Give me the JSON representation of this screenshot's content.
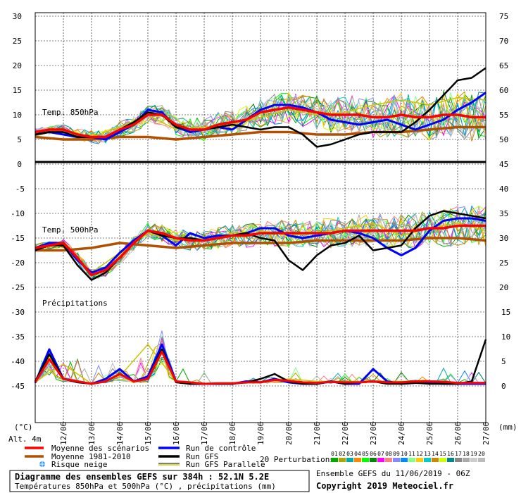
{
  "chart_data": {
    "type": "line",
    "panels": [
      {
        "label": "Temp. 850hPa",
        "unit": "°C",
        "left_ticks": [
          30,
          25,
          20,
          15,
          10,
          5,
          0
        ],
        "right_ticks": [
          75,
          70,
          65,
          60,
          55,
          50,
          45
        ]
      },
      {
        "label": "Temp. 500hPa",
        "unit": "°C",
        "left_ticks": [
          -5,
          -10,
          -15,
          -20,
          -25
        ],
        "right_ticks": [
          40,
          35,
          30,
          25,
          20
        ]
      },
      {
        "label": "Précipitations",
        "unit": "mm",
        "left_ticks": [
          -30,
          -35,
          -40,
          -45
        ],
        "right_ticks": [
          15,
          10,
          5,
          0
        ]
      }
    ],
    "left_unit": "(°C)",
    "right_unit": "(mm)",
    "altitude": "Alt. 4m",
    "dates": [
      "12/06",
      "13/06",
      "14/06",
      "15/06",
      "16/06",
      "17/06",
      "18/06",
      "19/06",
      "20/06",
      "21/06",
      "22/06",
      "23/06",
      "24/06",
      "25/06",
      "26/06",
      "27/06"
    ],
    "series": [
      {
        "name": "Moyenne des scénarios",
        "color": "#ff0000",
        "t850_x": [
          11.0,
          11.5,
          12.0,
          12.5,
          13.0,
          13.5,
          14.0,
          14.5,
          15.0,
          15.5,
          16.0,
          16.5,
          17.0,
          17.5,
          18.0,
          18.5,
          19.0,
          19.5,
          20.0,
          20.5,
          21.0,
          21.5,
          22.0,
          22.5,
          23.0,
          23.5,
          24.0,
          24.5,
          25.0,
          25.5,
          26.0,
          26.5,
          27.0
        ],
        "t850": [
          6.5,
          7.0,
          7.0,
          6.0,
          5.5,
          5.5,
          7.0,
          8.0,
          10.0,
          10.0,
          8.0,
          7.0,
          7.0,
          8.0,
          8.5,
          9.0,
          10.5,
          11.0,
          11.5,
          11.0,
          10.5,
          10.0,
          10.0,
          10.0,
          9.5,
          9.5,
          10.0,
          9.5,
          9.5,
          10.0,
          10.0,
          9.5,
          9.5
        ],
        "t500_x": [
          11.0,
          11.5,
          12.0,
          12.5,
          13.0,
          13.5,
          14.0,
          14.5,
          15.0,
          15.5,
          16.0,
          16.5,
          17.0,
          17.5,
          18.0,
          18.5,
          19.0,
          19.5,
          20.0,
          20.5,
          21.0,
          21.5,
          22.0,
          22.5,
          23.0,
          23.5,
          24.0,
          24.5,
          25.0,
          25.5,
          26.0,
          26.5,
          27.0
        ],
        "t500": [
          -17.0,
          -16.5,
          -16.0,
          -19.0,
          -22.5,
          -21.5,
          -19.0,
          -16.0,
          -13.5,
          -14.0,
          -15.0,
          -15.5,
          -15.5,
          -15.0,
          -14.5,
          -14.5,
          -14.0,
          -14.0,
          -14.0,
          -14.0,
          -14.0,
          -14.0,
          -13.5,
          -13.5,
          -13.5,
          -13.5,
          -13.5,
          -13.5,
          -13.0,
          -13.0,
          -12.5,
          -12.5,
          -12.5
        ],
        "precip_x": [
          11.0,
          11.5,
          12.0,
          12.5,
          13.0,
          13.5,
          14.0,
          14.5,
          15.0,
          15.5,
          16.0,
          16.5,
          17.0,
          17.5,
          18.0,
          18.5,
          19.0,
          19.5,
          20.0,
          20.5,
          21.0,
          21.5,
          22.0,
          22.5,
          23.0,
          23.5,
          24.0,
          24.5,
          25.0,
          25.5,
          26.0,
          26.5,
          27.0
        ],
        "precip": [
          0.3,
          5.0,
          1.0,
          0.5,
          0.0,
          0.5,
          2.0,
          0.5,
          1.0,
          6.5,
          0.5,
          0.3,
          0.0,
          0.1,
          0.1,
          0.3,
          0.3,
          0.8,
          0.6,
          0.3,
          0.2,
          0.4,
          0.3,
          0.3,
          0.5,
          0.3,
          0.3,
          0.5,
          0.5,
          0.4,
          0.2,
          0.2,
          0.2
        ]
      },
      {
        "name": "Moyenne 1981-2010",
        "color": "#b05000",
        "t850_x": [
          11.0,
          12.0,
          13.0,
          14.0,
          15.0,
          16.0,
          17.0,
          18.0,
          19.0,
          20.0,
          21.0,
          22.0,
          23.0,
          24.0,
          25.0,
          26.0,
          27.0
        ],
        "t850": [
          5.5,
          5.0,
          5.0,
          5.5,
          5.5,
          5.0,
          5.5,
          6.0,
          6.5,
          6.5,
          6.0,
          6.0,
          6.5,
          6.5,
          7.0,
          7.5,
          7.5
        ],
        "t500_x": [
          11.0,
          12.0,
          13.0,
          14.0,
          15.0,
          16.0,
          17.0,
          18.0,
          19.0,
          20.0,
          21.0,
          22.0,
          23.0,
          24.0,
          25.0,
          26.0,
          27.0
        ],
        "t500": [
          -17.5,
          -17.5,
          -17.0,
          -16.0,
          -16.5,
          -17.0,
          -16.5,
          -16.0,
          -16.0,
          -16.0,
          -15.5,
          -15.5,
          -15.5,
          -15.5,
          -15.0,
          -15.0,
          -15.5
        ]
      },
      {
        "name": "Run de contrôle",
        "color": "#0000ff",
        "t850_x": [
          11.0,
          11.5,
          12.0,
          12.5,
          13.0,
          13.5,
          14.0,
          14.5,
          15.0,
          15.5,
          16.0,
          16.5,
          17.0,
          17.5,
          18.0,
          18.5,
          19.0,
          19.5,
          20.0,
          20.5,
          21.0,
          21.5,
          22.0,
          22.5,
          23.0,
          23.5,
          24.0,
          24.5,
          25.0,
          25.5,
          26.0,
          26.5,
          27.0
        ],
        "t850": [
          6.0,
          6.5,
          6.0,
          5.5,
          5.5,
          5.0,
          6.5,
          8.0,
          11.0,
          10.5,
          7.5,
          6.5,
          7.0,
          7.5,
          7.0,
          9.0,
          11.0,
          12.0,
          12.0,
          11.5,
          10.5,
          9.0,
          8.5,
          8.0,
          8.5,
          9.0,
          8.0,
          7.0,
          8.0,
          9.0,
          11.0,
          12.5,
          14.5
        ],
        "t500_x": [
          11.0,
          11.5,
          12.0,
          12.5,
          13.0,
          13.5,
          14.0,
          14.5,
          15.0,
          15.5,
          16.0,
          16.5,
          17.0,
          17.5,
          18.0,
          18.5,
          19.0,
          19.5,
          20.0,
          20.5,
          21.0,
          21.5,
          22.0,
          22.5,
          23.0,
          23.5,
          24.0,
          24.5,
          25.0,
          25.5,
          26.0,
          26.5,
          27.0
        ],
        "t500": [
          -17.0,
          -16.0,
          -16.0,
          -19.5,
          -22.0,
          -21.0,
          -18.0,
          -15.5,
          -13.5,
          -14.5,
          -16.5,
          -14.0,
          -15.0,
          -14.5,
          -14.5,
          -14.0,
          -13.0,
          -13.0,
          -14.5,
          -15.0,
          -14.5,
          -14.0,
          -13.5,
          -14.0,
          -15.0,
          -17.0,
          -18.5,
          -17.0,
          -13.5,
          -11.5,
          -11.0,
          -11.0,
          -11.5
        ],
        "precip_x": [
          11.0,
          11.5,
          12.0,
          12.5,
          13.0,
          13.5,
          14.0,
          14.5,
          15.0,
          15.5,
          16.0,
          16.5,
          17.0,
          17.5,
          18.0,
          18.5,
          19.0,
          19.5,
          20.0,
          20.5,
          21.0,
          21.5,
          22.0,
          22.5,
          23.0,
          23.5,
          24.0,
          24.5,
          25.0,
          25.5,
          26.0,
          26.5,
          27.0
        ],
        "precip": [
          0.2,
          7.0,
          1.0,
          0.5,
          0.0,
          1.0,
          3.0,
          0.5,
          1.5,
          8.0,
          0.5,
          0.0,
          0.0,
          0.0,
          0.0,
          0.5,
          0.3,
          1.0,
          0.3,
          0.0,
          0.0,
          0.5,
          0.0,
          0.0,
          3.0,
          0.5,
          0.0,
          0.2,
          0.2,
          0.0,
          0.0,
          0.0,
          0.0
        ]
      },
      {
        "name": "Run GFS",
        "color": "#000000",
        "t850_x": [
          11.0,
          11.5,
          12.0,
          12.5,
          13.0,
          13.5,
          14.0,
          14.5,
          15.0,
          15.5,
          16.0,
          16.5,
          17.0,
          17.5,
          18.0,
          18.5,
          19.0,
          19.5,
          20.0,
          20.5,
          21.0,
          21.5,
          22.0,
          22.5,
          23.0,
          23.5,
          24.0,
          24.5,
          25.0,
          25.5,
          26.0,
          26.5,
          27.0
        ],
        "t850": [
          6.0,
          6.5,
          6.5,
          5.5,
          5.5,
          5.5,
          7.0,
          8.5,
          10.5,
          10.0,
          7.5,
          7.0,
          7.0,
          7.5,
          8.0,
          7.5,
          7.0,
          7.5,
          7.5,
          6.0,
          3.5,
          4.0,
          5.0,
          6.0,
          6.5,
          6.5,
          6.5,
          8.5,
          11.0,
          14.0,
          17.0,
          17.5,
          19.5
        ],
        "t500_x": [
          11.0,
          11.5,
          12.0,
          12.5,
          13.0,
          13.5,
          14.0,
          14.5,
          15.0,
          15.5,
          16.0,
          16.5,
          17.0,
          17.5,
          18.0,
          18.5,
          19.0,
          19.5,
          20.0,
          20.5,
          21.0,
          21.5,
          22.0,
          22.5,
          23.0,
          23.5,
          24.0,
          24.5,
          25.0,
          25.5,
          26.0,
          26.5,
          27.0
        ],
        "t500": [
          -17.5,
          -16.5,
          -16.5,
          -20.5,
          -23.5,
          -22.0,
          -19.0,
          -16.0,
          -13.5,
          -14.5,
          -15.0,
          -15.0,
          -15.5,
          -15.0,
          -14.5,
          -14.0,
          -15.0,
          -15.5,
          -19.5,
          -21.5,
          -18.5,
          -16.5,
          -16.0,
          -14.5,
          -17.5,
          -17.0,
          -16.5,
          -13.0,
          -10.5,
          -9.5,
          -10.0,
          -10.5,
          -11.0
        ],
        "precip_x": [
          11.0,
          11.5,
          12.0,
          12.5,
          13.0,
          13.5,
          14.0,
          14.5,
          15.0,
          15.5,
          16.0,
          16.5,
          17.0,
          17.5,
          18.0,
          18.5,
          19.0,
          19.5,
          20.0,
          20.5,
          21.0,
          21.5,
          22.0,
          22.5,
          23.0,
          23.5,
          24.0,
          24.5,
          25.0,
          25.5,
          26.0,
          26.5,
          27.0
        ],
        "precip": [
          0.5,
          6.0,
          1.0,
          0.3,
          0.0,
          0.5,
          2.0,
          0.5,
          1.0,
          7.0,
          0.3,
          0.0,
          0.0,
          0.0,
          0.0,
          0.3,
          1.0,
          2.0,
          0.5,
          0.0,
          0.0,
          0.5,
          0.0,
          0.3,
          0.5,
          0.0,
          0.0,
          0.2,
          0.0,
          0.0,
          0.0,
          0.5,
          9.0
        ]
      },
      {
        "name": "Run GFS Parallele",
        "color": "#c8c800",
        "t850_x": [
          11.0,
          12.0,
          13.0,
          14.0,
          15.0,
          16.0,
          17.0,
          18.0,
          19.0,
          20.0,
          21.0,
          22.0,
          23.0,
          24.0,
          25.0,
          26.0,
          27.0
        ],
        "t850": [
          6.5,
          7.0,
          5.5,
          7.5,
          10.0,
          7.0,
          7.5,
          8.0,
          9.5,
          11.0,
          10.0,
          10.5,
          12.0,
          13.0,
          12.0,
          13.5,
          13.0
        ],
        "t500_x": [
          11.0,
          12.0,
          13.0,
          14.0,
          15.0,
          16.0,
          17.0,
          18.0,
          19.0,
          20.0,
          21.0,
          22.0,
          23.0,
          24.0,
          25.0,
          26.0,
          27.0
        ],
        "t500": [
          -17.0,
          -16.5,
          -22.0,
          -18.0,
          -14.0,
          -15.5,
          -15.0,
          -14.0,
          -13.5,
          -14.5,
          -14.0,
          -13.0,
          -12.0,
          -14.5,
          -13.0,
          -12.0,
          -13.5
        ],
        "precip_x": [
          11.0,
          12.0,
          13.0,
          14.0,
          15.0,
          16.0,
          17.0,
          18.0,
          19.0,
          20.0,
          21.0,
          22.0,
          23.0,
          24.0,
          25.0,
          26.0,
          27.0
        ],
        "precip": [
          0.5,
          4.0,
          0.0,
          1.5,
          8.0,
          0.5,
          0.0,
          0.0,
          0.5,
          1.0,
          0.5,
          0.5,
          0.5,
          0.5,
          0.5,
          0.2,
          0.2
        ]
      }
    ],
    "perturbations_label": "20 Perturbations",
    "perturbation_numbers": [
      "01",
      "02",
      "03",
      "04",
      "05",
      "06",
      "07",
      "08",
      "09",
      "10",
      "11",
      "12",
      "13",
      "14",
      "15",
      "16",
      "17",
      "18",
      "19",
      "20"
    ],
    "perturbation_colors": [
      "#00aa00",
      "#aaaa00",
      "#00aaaa",
      "#ff8800",
      "#00ff00",
      "#008800",
      "#ff00ff",
      "#ff8080",
      "#8888ff",
      "#0088ff",
      "#88ff88",
      "#ffcc00",
      "#00cccc",
      "#cc8800",
      "#ccff00",
      "#008888",
      "#888888",
      "#aaaaaa",
      "#cccccc",
      "#bbbbbb"
    ],
    "snow_risk_label": "Risque neige",
    "title": "Diagramme des ensembles GEFS sur 384h : 52.1N 5.2E",
    "subtitle": "Températures 850hPa et 500hPa (°C) , précipitations (mm)",
    "run_info": "Ensemble GEFS du 11/06/2019 - 06Z",
    "copyright": "Copyright 2019 Meteociel.fr"
  }
}
